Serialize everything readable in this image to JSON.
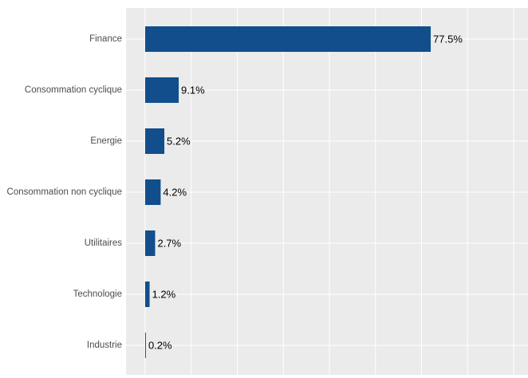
{
  "chart_data": {
    "type": "bar",
    "orientation": "horizontal",
    "categories": [
      "Finance",
      "Consommation cyclique",
      "Energie",
      "Consommation non cyclique",
      "Utilitaires",
      "Technologie",
      "Industrie"
    ],
    "values": [
      77.5,
      9.1,
      5.2,
      4.2,
      2.7,
      1.2,
      0.2
    ],
    "value_labels": [
      "77.5%",
      "9.1%",
      "5.2%",
      "4.2%",
      "2.7%",
      "1.2%",
      "0.2%"
    ],
    "color": "#114e8b",
    "xlim": [
      -5.2,
      103.9
    ],
    "xticks": [
      0,
      12.5,
      25,
      37.5,
      50,
      62.5,
      75,
      87.5,
      100
    ],
    "grid": true
  }
}
